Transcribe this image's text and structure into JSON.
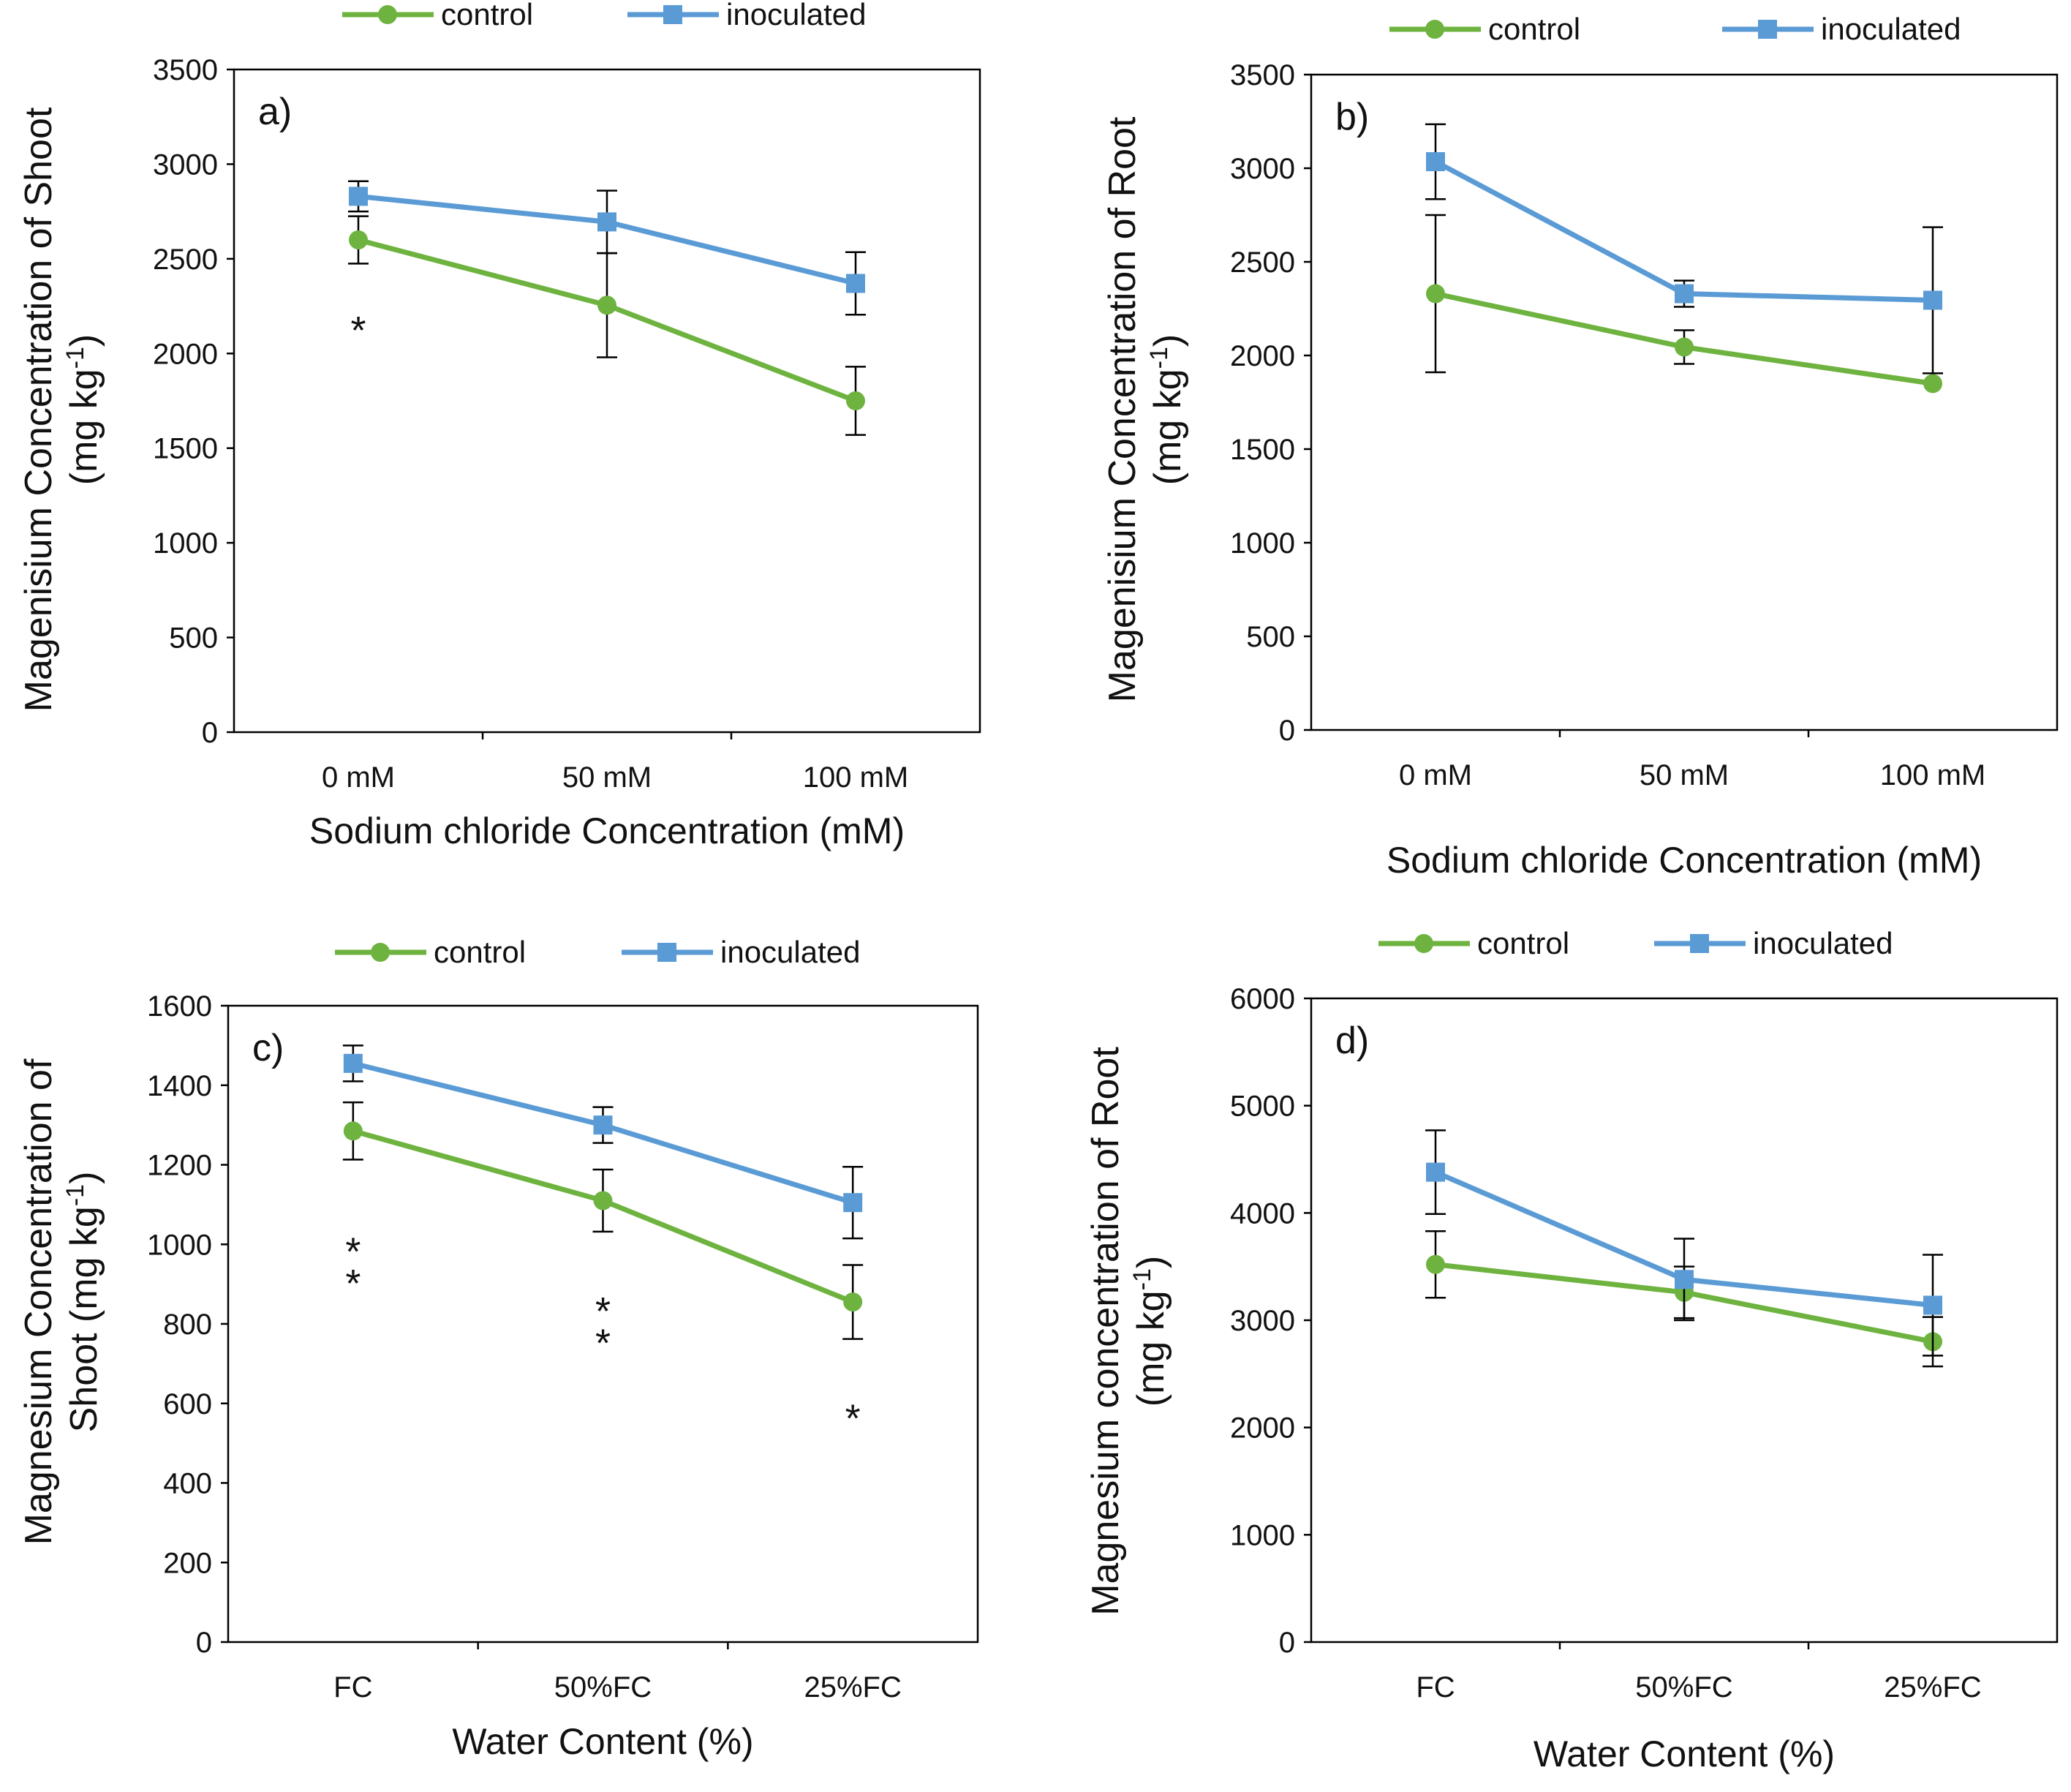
{
  "colors": {
    "control": "#6eb33f",
    "inoculated": "#5b9bd5",
    "axis": "#000000"
  },
  "legend_icons": {
    "control": "circle-marker-icon",
    "inoculated": "square-marker-icon"
  },
  "chart_data": [
    {
      "id": "a",
      "type": "line",
      "panel_label": "a)",
      "categories": [
        "0 mM",
        "50 mM",
        "100 mM"
      ],
      "xlabel": "Sodium chloride Concentration (mM)",
      "ylabel": [
        "Magenisium Concentration of Shoot",
        "(mg kg-1)"
      ],
      "ylim": [
        0,
        3500
      ],
      "yticks": [
        0,
        500,
        1000,
        1500,
        2000,
        2500,
        3000,
        3500
      ],
      "grid": false,
      "legend_position": "top",
      "series": [
        {
          "name": "control",
          "marker": "circle",
          "values": [
            2600,
            2255,
            1750
          ],
          "err_low": [
            125,
            275,
            180
          ],
          "err_high": [
            125,
            275,
            180
          ]
        },
        {
          "name": "inoculated",
          "marker": "square",
          "values": [
            2830,
            2695,
            2370
          ],
          "err_low": [
            80,
            165,
            165
          ],
          "err_high": [
            80,
            165,
            165
          ]
        }
      ],
      "annotations": [
        {
          "category_index": 0,
          "value": 2160,
          "text": "*"
        }
      ]
    },
    {
      "id": "b",
      "type": "line",
      "panel_label": "b)",
      "categories": [
        "0 mM",
        "50 mM",
        "100 mM"
      ],
      "xlabel": "Sodium chloride Concentration (mM)",
      "ylabel": [
        "Magenisium Concentration of Root",
        "(mg kg-1)"
      ],
      "ylim": [
        0,
        3500
      ],
      "yticks": [
        0,
        500,
        1000,
        1500,
        2000,
        2500,
        3000,
        3500
      ],
      "grid": false,
      "legend_position": "top",
      "series": [
        {
          "name": "control",
          "marker": "circle",
          "values": [
            2330,
            2045,
            1850
          ],
          "err_low": [
            420,
            90,
            0
          ],
          "err_high": [
            420,
            90,
            0
          ]
        },
        {
          "name": "inoculated",
          "marker": "square",
          "values": [
            3035,
            2330,
            2295
          ],
          "err_low": [
            200,
            70,
            390
          ],
          "err_high": [
            200,
            70,
            390
          ]
        }
      ],
      "annotations": []
    },
    {
      "id": "c",
      "type": "line",
      "panel_label": "c)",
      "categories": [
        "FC",
        "50%FC",
        "25%FC"
      ],
      "xlabel": "Water Content (%)",
      "ylabel": [
        "Magnesium Concentration of",
        "Shoot (mg kg-1)"
      ],
      "ylim": [
        0,
        1600
      ],
      "yticks": [
        0,
        200,
        400,
        600,
        800,
        1000,
        1200,
        1400,
        1600
      ],
      "grid": false,
      "legend_position": "top",
      "series": [
        {
          "name": "control",
          "marker": "circle",
          "values": [
            1285,
            1110,
            855
          ],
          "err_low": [
            72,
            78,
            93
          ],
          "err_high": [
            72,
            78,
            93
          ]
        },
        {
          "name": "inoculated",
          "marker": "square",
          "values": [
            1455,
            1300,
            1105
          ],
          "err_low": [
            45,
            45,
            90
          ],
          "err_high": [
            45,
            45,
            90
          ]
        }
      ],
      "annotations": [
        {
          "category_index": 0,
          "value": 1000,
          "text": "*"
        },
        {
          "category_index": 0,
          "value": 920,
          "text": "*"
        },
        {
          "category_index": 1,
          "value": 850,
          "text": "*"
        },
        {
          "category_index": 1,
          "value": 770,
          "text": "*"
        },
        {
          "category_index": 2,
          "value": 580,
          "text": "*"
        }
      ]
    },
    {
      "id": "d",
      "type": "line",
      "panel_label": "d)",
      "categories": [
        "FC",
        "50%FC",
        "25%FC"
      ],
      "xlabel": "Water Content (%)",
      "ylabel": [
        "Magnesium concentration of Root",
        "(mg kg-1)"
      ],
      "ylim": [
        0,
        6000
      ],
      "yticks": [
        0,
        1000,
        2000,
        3000,
        4000,
        5000,
        6000
      ],
      "grid": false,
      "legend_position": "top",
      "series": [
        {
          "name": "control",
          "marker": "circle",
          "values": [
            3520,
            3260,
            2800
          ],
          "err_low": [
            310,
            240,
            230
          ],
          "err_high": [
            310,
            240,
            230
          ]
        },
        {
          "name": "inoculated",
          "marker": "square",
          "values": [
            4380,
            3380,
            3140
          ],
          "err_low": [
            390,
            380,
            470
          ],
          "err_high": [
            390,
            380,
            470
          ]
        }
      ],
      "annotations": []
    }
  ]
}
